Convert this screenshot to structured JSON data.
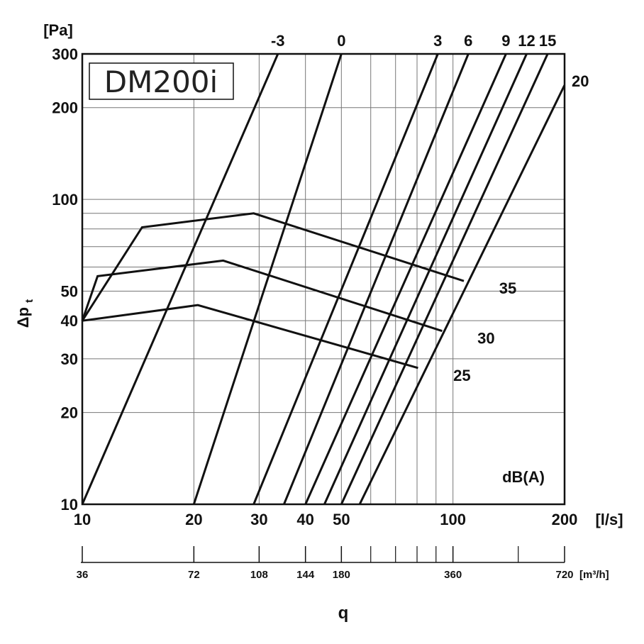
{
  "chart_data": {
    "type": "line",
    "title": "DM200i",
    "x_axis": {
      "unit": "[l/s]",
      "scale": "log",
      "range": [
        10,
        200
      ],
      "tick_labels": [
        "10",
        "20",
        "30",
        "40",
        "50",
        "100",
        "200"
      ],
      "gridlines": [
        10,
        20,
        30,
        40,
        50,
        60,
        70,
        80,
        90,
        100,
        200
      ]
    },
    "x2_axis": {
      "unit": "[m³/h]",
      "tick_labels": [
        "36",
        "72",
        "108",
        "144",
        "180",
        "360",
        "720"
      ],
      "tick_values": [
        10,
        20,
        30,
        40,
        50,
        100,
        200
      ],
      "minor_ticks": [
        60,
        70,
        80,
        90,
        150
      ]
    },
    "x_name": "q",
    "y_axis": {
      "unit": "[Pa]",
      "label_main": "Δp",
      "label_sub": "t",
      "scale": "log",
      "range": [
        10,
        300
      ],
      "tick_labels": [
        "10",
        "20",
        "30",
        "40",
        "50",
        "100",
        "200",
        "300"
      ],
      "gridlines": [
        10,
        20,
        30,
        40,
        50,
        60,
        70,
        80,
        90,
        100,
        200,
        300
      ]
    },
    "sound_unit": "dB(A)",
    "damper_setting_lines": [
      {
        "label": "-3",
        "points": [
          [
            10,
            10
          ],
          [
            33.7,
            300
          ]
        ]
      },
      {
        "label": "0",
        "points": [
          [
            20,
            10
          ],
          [
            50,
            300
          ]
        ]
      },
      {
        "label": "3",
        "points": [
          [
            29,
            10
          ],
          [
            91,
            300
          ]
        ]
      },
      {
        "label": "6",
        "points": [
          [
            35,
            10
          ],
          [
            110,
            300
          ]
        ]
      },
      {
        "label": "9",
        "points": [
          [
            40,
            10
          ],
          [
            139,
            300
          ]
        ]
      },
      {
        "label": "12",
        "points": [
          [
            45,
            10
          ],
          [
            158,
            300
          ]
        ]
      },
      {
        "label": "15",
        "points": [
          [
            50,
            10
          ],
          [
            180,
            300
          ]
        ]
      },
      {
        "label": "20",
        "points": [
          [
            56,
            10
          ],
          [
            200,
            237
          ]
        ]
      }
    ],
    "sound_level_lines": [
      {
        "label": "25",
        "points": [
          [
            10,
            40
          ],
          [
            20.5,
            45
          ],
          [
            80.5,
            28
          ]
        ]
      },
      {
        "label": "30",
        "points": [
          [
            10,
            40
          ],
          [
            11,
            56
          ],
          [
            24,
            63
          ],
          [
            93.5,
            37
          ]
        ]
      },
      {
        "label": "35",
        "points": [
          [
            10,
            40
          ],
          [
            14.5,
            81
          ],
          [
            29,
            90
          ],
          [
            107,
            54
          ]
        ]
      }
    ]
  }
}
